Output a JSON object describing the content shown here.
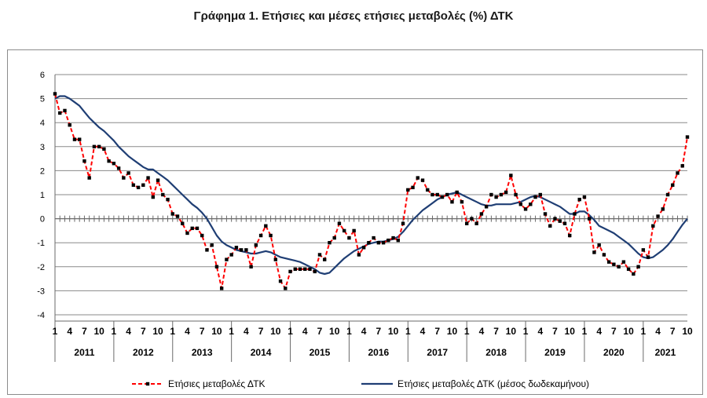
{
  "title": "Γράφημα 1. Ετήσιες και μέσες ετήσιες μεταβολές (%) ΔΤΚ",
  "chart_data": {
    "type": "line",
    "title": "Γράφημα 1. Ετήσιες και μέσες ετήσιες μεταβολές (%) ΔΤΚ",
    "xlabel": "",
    "ylabel": "",
    "ylim": [
      -4,
      6
    ],
    "yticks": [
      "6",
      "5",
      "4",
      "3",
      "2",
      "1",
      "0",
      "-1",
      "-2",
      "-3",
      "-4"
    ],
    "month_ticks": [
      "1",
      "4",
      "7",
      "10"
    ],
    "years": [
      "2011",
      "2012",
      "2013",
      "2014",
      "2015",
      "2016",
      "2017",
      "2018",
      "2019",
      "2020",
      "2021"
    ],
    "grid": true,
    "legend_position": "bottom",
    "series": [
      {
        "name": "Ετήσιες μεταβολές ΔΤΚ",
        "color": "#ff0000",
        "marker_color": "#000000",
        "style": "dashed",
        "values": [
          5.2,
          4.4,
          4.5,
          3.9,
          3.3,
          3.3,
          2.4,
          1.7,
          3.0,
          3.0,
          2.9,
          2.4,
          2.3,
          2.1,
          1.7,
          1.9,
          1.4,
          1.3,
          1.4,
          1.7,
          0.9,
          1.6,
          1.0,
          0.8,
          0.2,
          0.1,
          -0.2,
          -0.6,
          -0.4,
          -0.4,
          -0.7,
          -1.3,
          -1.1,
          -2.0,
          -2.9,
          -1.7,
          -1.5,
          -1.2,
          -1.3,
          -1.3,
          -2.0,
          -1.1,
          -0.7,
          -0.3,
          -0.7,
          -1.7,
          -2.6,
          -2.9,
          -2.2,
          -2.1,
          -2.1,
          -2.1,
          -2.1,
          -2.2,
          -1.5,
          -1.7,
          -1.0,
          -0.8,
          -0.2,
          -0.5,
          -0.8,
          -0.5,
          -1.5,
          -1.2,
          -1.0,
          -0.8,
          -1.0,
          -1.0,
          -0.9,
          -0.8,
          -0.9,
          -0.2,
          1.2,
          1.3,
          1.7,
          1.6,
          1.2,
          1.0,
          1.0,
          0.9,
          1.0,
          0.7,
          1.1,
          0.7,
          -0.2,
          0.0,
          -0.2,
          0.2,
          0.5,
          1.0,
          0.9,
          1.0,
          1.1,
          1.8,
          1.0,
          0.6,
          0.4,
          0.6,
          0.9,
          1.0,
          0.2,
          -0.3,
          0.0,
          -0.1,
          -0.2,
          -0.7,
          0.2,
          0.8,
          0.9,
          0.0,
          -1.4,
          -1.1,
          -1.5,
          -1.8,
          -1.9,
          -2.0,
          -1.8,
          -2.1,
          -2.3,
          -2.0,
          -1.3,
          -1.6,
          -0.3,
          0.1,
          0.4,
          1.0,
          1.4,
          1.9,
          2.2,
          3.4
        ]
      },
      {
        "name": "Ετήσιες μεταβολές ΔΤΚ (μέσος δωδεκαμήνου)",
        "color": "#1f3e74",
        "style": "solid",
        "values": [
          5.0,
          5.1,
          5.1,
          5.0,
          4.85,
          4.7,
          4.45,
          4.2,
          4.0,
          3.8,
          3.65,
          3.45,
          3.25,
          3.0,
          2.8,
          2.6,
          2.45,
          2.3,
          2.15,
          2.05,
          2.05,
          1.9,
          1.75,
          1.6,
          1.4,
          1.2,
          1.0,
          0.8,
          0.6,
          0.45,
          0.25,
          0.0,
          -0.35,
          -0.7,
          -0.95,
          -1.1,
          -1.2,
          -1.3,
          -1.35,
          -1.4,
          -1.45,
          -1.45,
          -1.4,
          -1.35,
          -1.4,
          -1.5,
          -1.6,
          -1.65,
          -1.7,
          -1.75,
          -1.8,
          -1.9,
          -2.0,
          -2.1,
          -2.25,
          -2.3,
          -2.25,
          -2.05,
          -1.85,
          -1.65,
          -1.5,
          -1.35,
          -1.25,
          -1.15,
          -1.05,
          -1.0,
          -0.95,
          -0.95,
          -0.9,
          -0.85,
          -0.75,
          -0.55,
          -0.3,
          -0.05,
          0.15,
          0.35,
          0.5,
          0.65,
          0.8,
          0.9,
          1.0,
          1.05,
          1.1,
          1.0,
          0.9,
          0.8,
          0.7,
          0.6,
          0.55,
          0.55,
          0.6,
          0.6,
          0.6,
          0.6,
          0.65,
          0.7,
          0.8,
          0.9,
          0.95,
          0.9,
          0.8,
          0.7,
          0.6,
          0.5,
          0.35,
          0.2,
          0.2,
          0.3,
          0.3,
          0.15,
          -0.05,
          -0.3,
          -0.4,
          -0.5,
          -0.6,
          -0.75,
          -0.9,
          -1.05,
          -1.25,
          -1.45,
          -1.6,
          -1.65,
          -1.6,
          -1.45,
          -1.3,
          -1.1,
          -0.85,
          -0.55,
          -0.25,
          0.0
        ]
      }
    ]
  }
}
